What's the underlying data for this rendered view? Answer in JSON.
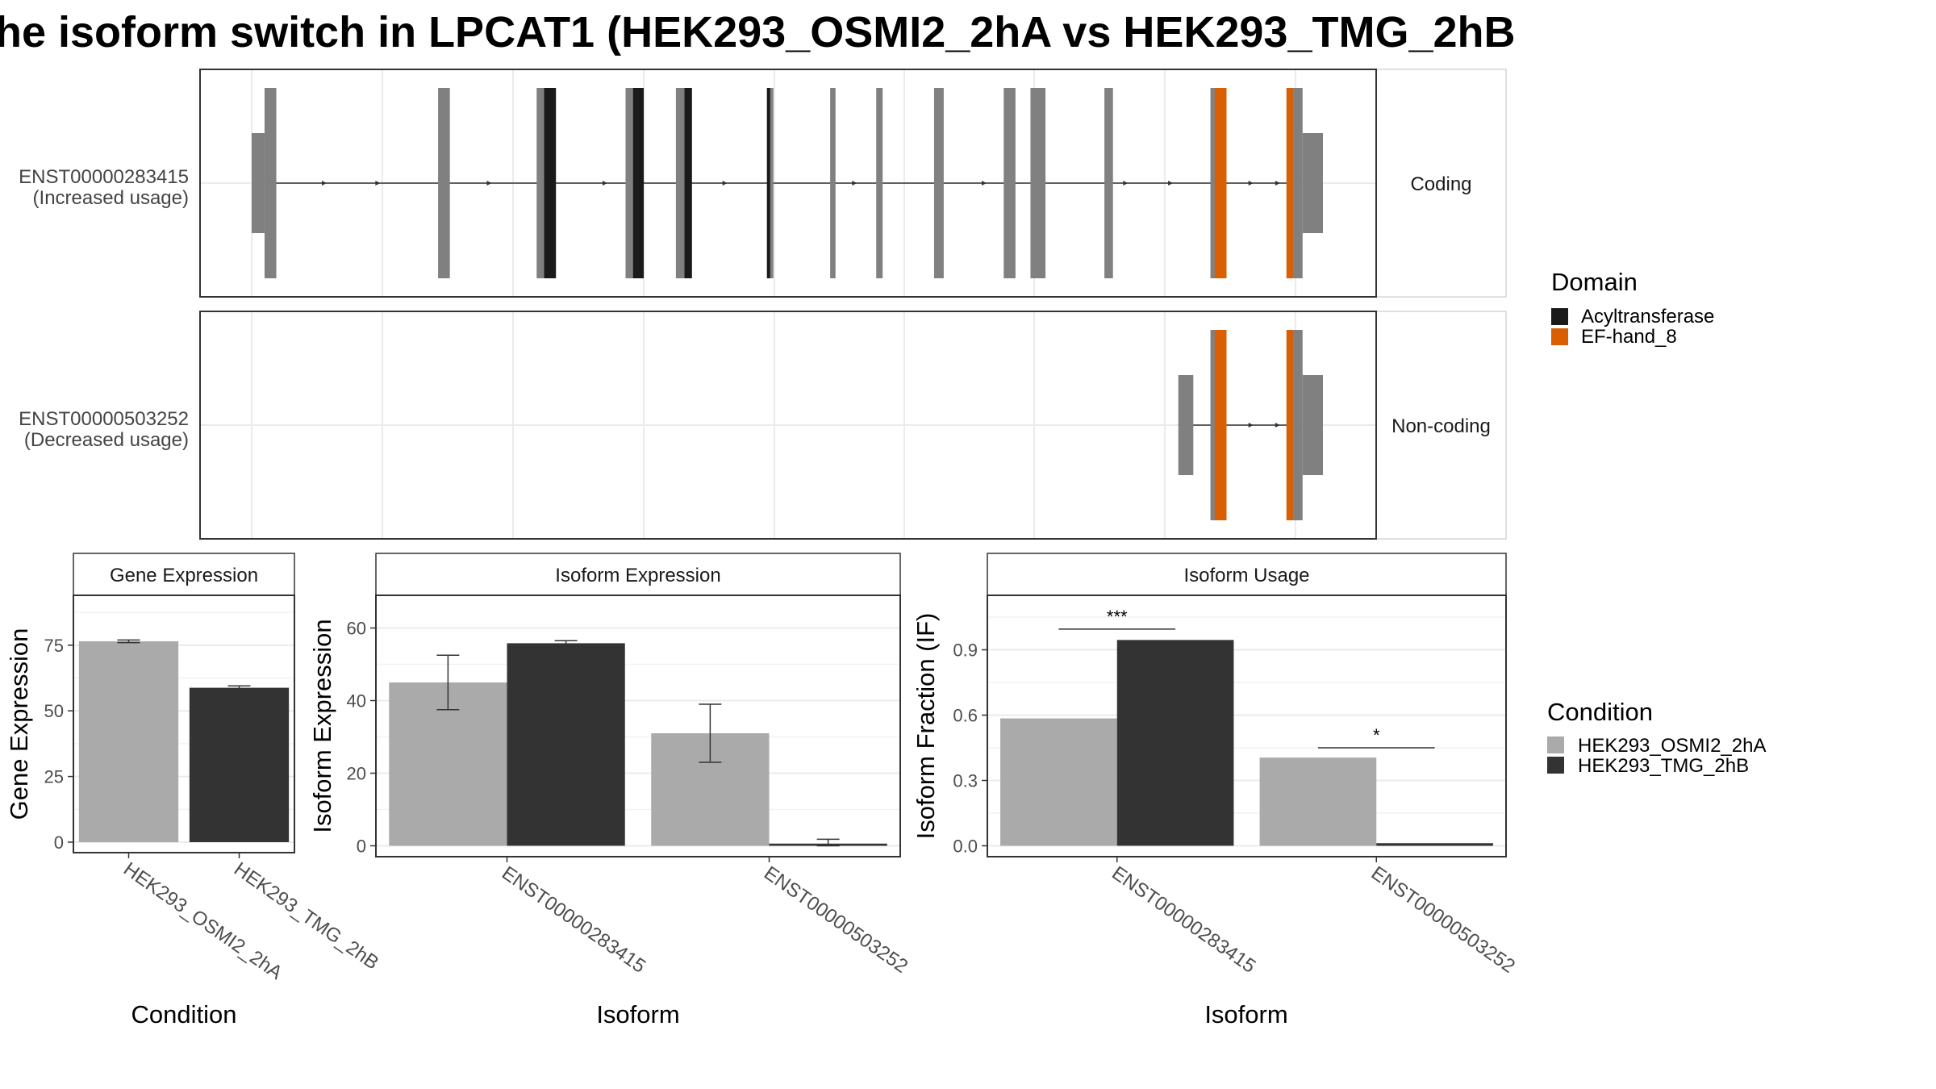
{
  "title": "he isoform switch in LPCAT1 (HEK293_OSMI2_2hA vs HEK293_TMG_2hB",
  "colors": {
    "exon": "#808080",
    "acyltransferase": "#1a1a1a",
    "ef_hand_8": "#d95f02",
    "cond_a": "#aaaaaa",
    "cond_b": "#333333"
  },
  "transcripts": [
    {
      "id": "ENST00000283415",
      "usage": "(Increased usage)",
      "type": "Coding",
      "utr_start": [
        0.0,
        0.012
      ],
      "exons": [
        [
          0.012,
          0.023
        ],
        [
          0.174,
          0.185
        ],
        [
          0.266,
          0.284
        ],
        [
          0.349,
          0.359
        ],
        [
          0.396,
          0.404
        ],
        [
          0.481,
          0.487
        ],
        [
          0.54,
          0.545
        ],
        [
          0.583,
          0.589
        ],
        [
          0.637,
          0.646
        ],
        [
          0.702,
          0.713
        ],
        [
          0.727,
          0.741
        ],
        [
          0.796,
          0.804
        ],
        [
          0.895,
          0.91
        ],
        [
          0.966,
          0.981
        ]
      ],
      "utr_end": [
        0.981,
        1.0
      ],
      "domains": [
        {
          "name": "Acyltransferase",
          "ranges": [
            [
              0.273,
              0.284
            ],
            [
              0.356,
              0.366
            ],
            [
              0.404,
              0.411
            ],
            [
              0.481,
              0.484
            ]
          ]
        },
        {
          "name": "EF-hand_8",
          "ranges": [
            [
              0.899,
              0.91
            ],
            [
              0.966,
              0.972
            ]
          ]
        }
      ],
      "arrows": [
        0.07,
        0.12,
        0.224,
        0.332,
        0.444,
        0.565,
        0.686,
        0.818,
        0.86,
        0.935,
        0.96
      ]
    },
    {
      "id": "ENST00000503252",
      "usage": "(Decreased usage)",
      "type": "Non-coding",
      "utr_start": [
        0.865,
        0.879
      ],
      "exons": [
        [
          0.895,
          0.91
        ],
        [
          0.966,
          0.981
        ]
      ],
      "utr_end": [
        0.981,
        1.0
      ],
      "domains": [
        {
          "name": "EF-hand_8",
          "ranges": [
            [
              0.899,
              0.91
            ],
            [
              0.966,
              0.972
            ]
          ]
        }
      ],
      "arrows": [
        0.935,
        0.96
      ]
    }
  ],
  "domain_legend": {
    "title": "Domain",
    "items": [
      {
        "name": "Acyltransferase",
        "color": "#1a1a1a"
      },
      {
        "name": "EF-hand_8",
        "color": "#d95f02"
      }
    ]
  },
  "condition_legend": {
    "title": "Condition",
    "items": [
      {
        "name": "HEK293_OSMI2_2hA",
        "color": "#aaaaaa"
      },
      {
        "name": "HEK293_TMG_2hB",
        "color": "#333333"
      }
    ]
  },
  "chart_data": [
    {
      "type": "bar",
      "title": "Gene Expression",
      "xlabel": "Condition",
      "ylabel": "Gene Expression",
      "categories": [
        "HEK293_OSMI2_2hA",
        "HEK293_TMG_2hB"
      ],
      "values": [
        76.5,
        58.8
      ],
      "error": [
        [
          76.0,
          77.0
        ],
        [
          58.2,
          59.5
        ]
      ],
      "colors": [
        "#aaaaaa",
        "#333333"
      ],
      "ylim": [
        -4,
        94
      ],
      "yticks": [
        0,
        25,
        50,
        75
      ]
    },
    {
      "type": "bar",
      "title": "Isoform Expression",
      "xlabel": "Isoform",
      "ylabel": "Isoform Expression",
      "categories": [
        "ENST00000283415",
        "ENST00000503252"
      ],
      "series": [
        {
          "name": "HEK293_OSMI2_2hA",
          "values": [
            45.0,
            31.0
          ],
          "error": [
            [
              37.5,
              52.5
            ],
            [
              23.0,
              39.0
            ]
          ]
        },
        {
          "name": "HEK293_TMG_2hB",
          "values": [
            55.8,
            0.6
          ],
          "error": [
            [
              55.0,
              56.5
            ],
            [
              0.0,
              1.8
            ]
          ]
        }
      ],
      "ylim": [
        -3,
        69
      ],
      "yticks": [
        0,
        20,
        40,
        60
      ]
    },
    {
      "type": "bar",
      "title": "Isoform Usage",
      "xlabel": "Isoform",
      "ylabel": "Isoform Fraction (IF)",
      "categories": [
        "ENST00000283415",
        "ENST00000503252"
      ],
      "series": [
        {
          "name": "HEK293_OSMI2_2hA",
          "values": [
            0.585,
            0.405
          ]
        },
        {
          "name": "HEK293_TMG_2hB",
          "values": [
            0.945,
            0.012
          ]
        }
      ],
      "significance": [
        {
          "label": "***",
          "y": 0.995
        },
        {
          "label": "*",
          "y": 0.45
        }
      ],
      "ylim": [
        -0.05,
        1.15
      ],
      "yticks": [
        0.0,
        0.3,
        0.6,
        0.9
      ],
      "ytick_labels": [
        "0.0",
        "0.3",
        "0.6",
        "0.9"
      ]
    }
  ]
}
